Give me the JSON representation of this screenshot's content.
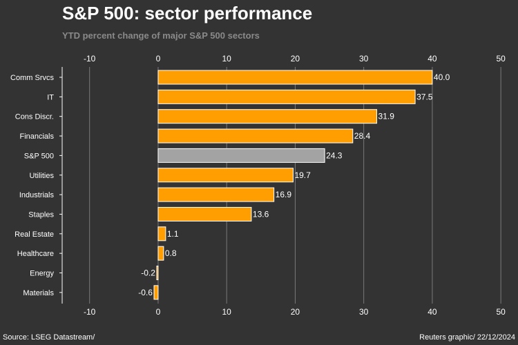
{
  "header": {
    "title": "S&P 500: sector performance",
    "subtitle": "YTD percent change of major S&P 500 sectors"
  },
  "footer": {
    "source": "Source: LSEG Datastream/",
    "credit": "Reuters graphic/ 22/12/2024"
  },
  "colors": {
    "bar": "#ff9e00",
    "highlight": "#a3a3a3",
    "grid": "#7a7a7a",
    "background": "#333333",
    "text": "#ffffff"
  },
  "chart_data": {
    "type": "bar",
    "orientation": "horizontal",
    "title": "S&P 500: sector performance",
    "subtitle": "YTD percent change of major S&P 500 sectors",
    "categories": [
      "Comm Srvcs",
      "IT",
      "Cons Discr.",
      "Financials",
      "S&P 500",
      "Utilities",
      "Industrials",
      "Staples",
      "Real Estate",
      "Healthcare",
      "Energy",
      "Materials"
    ],
    "values": [
      40.0,
      37.5,
      31.9,
      28.4,
      24.3,
      19.7,
      16.9,
      13.6,
      1.1,
      0.8,
      -0.2,
      -0.6
    ],
    "value_labels": [
      "40.0",
      "37.5",
      "31.9",
      "28.4",
      "24.3",
      "19.7",
      "16.9",
      "13.6",
      "1.1",
      "0.8",
      "-0.2",
      "-0.6"
    ],
    "highlight": "S&P 500",
    "xlim": [
      -14,
      52
    ],
    "xticks": [
      -10,
      0,
      10,
      20,
      30,
      40,
      50
    ],
    "xtick_labels": [
      "-10",
      "0",
      "10",
      "20",
      "30",
      "40",
      "50"
    ],
    "xlabel": "",
    "ylabel": "",
    "grid": true
  }
}
